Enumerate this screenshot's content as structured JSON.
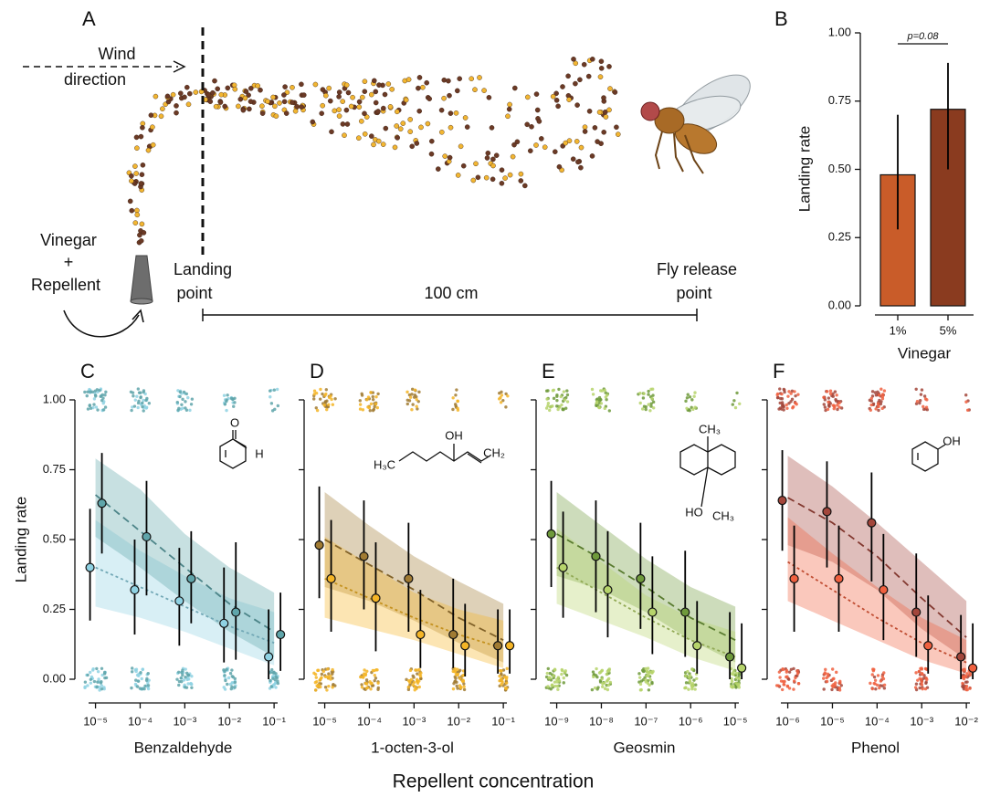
{
  "diagram": {
    "panel_label": "A",
    "wind_label": [
      "Wind",
      "direction"
    ],
    "source_label": [
      "Vinegar",
      "+",
      "Repellent"
    ],
    "landing_label": [
      "Landing",
      "point"
    ],
    "distance_label": "100 cm",
    "release_label": [
      "Fly release",
      "point"
    ]
  },
  "x_label": "Repellent concentration",
  "chart_data": [
    {
      "type": "bar",
      "panel_label": "B",
      "categories": [
        "1%",
        "5%"
      ],
      "values": [
        0.48,
        0.72
      ],
      "ci_low": [
        0.28,
        0.5
      ],
      "ci_high": [
        0.7,
        0.89
      ],
      "colors": [
        "#c95c29",
        "#8a3b1f"
      ],
      "ylim": [
        0,
        1
      ],
      "yticks": [
        {
          "value": 0,
          "label": "0.00"
        },
        {
          "value": 0.25,
          "label": "0.25"
        },
        {
          "value": 0.5,
          "label": "0.50"
        },
        {
          "value": 0.75,
          "label": "0.75"
        },
        {
          "value": 1,
          "label": "1.00"
        }
      ],
      "ylabel": "Landing rate",
      "xlabel": "Vinegar",
      "annotation": "p=0.08"
    },
    {
      "type": "scatter",
      "panel_label": "C",
      "xlabel": "Benzaldehyde",
      "ylabel": "Landing rate",
      "log_x": true,
      "xlim": [
        7e-06,
        0.12
      ],
      "x": [
        1e-05,
        0.0001,
        0.001,
        0.01,
        0.1
      ],
      "xticks": [
        {
          "value": 1e-05,
          "label": "10⁻⁵"
        },
        {
          "value": 0.0001,
          "label": "10⁻⁴"
        },
        {
          "value": 0.001,
          "label": "10⁻³"
        },
        {
          "value": 0.01,
          "label": "10⁻²"
        },
        {
          "value": 0.1,
          "label": "10⁻¹"
        }
      ],
      "ylim": [
        0,
        1
      ],
      "yticks": [
        {
          "value": 0,
          "label": "0.00"
        },
        {
          "value": 0.25,
          "label": "0.25"
        },
        {
          "value": 0.5,
          "label": "0.50"
        },
        {
          "value": 0.75,
          "label": "0.75"
        },
        {
          "value": 1,
          "label": "1.00"
        }
      ],
      "show_ytick_labels": true,
      "structure_labels": [
        "O",
        "H"
      ],
      "series": [
        {
          "color": "#8fd2e3",
          "line_style": "dotted",
          "values": [
            0.4,
            0.32,
            0.28,
            0.2,
            0.08
          ],
          "ci_low": [
            0.21,
            0.16,
            0.12,
            0.06,
            0.0
          ],
          "ci_high": [
            0.61,
            0.5,
            0.47,
            0.4,
            0.25
          ],
          "fit": [
            0.4,
            0.33,
            0.26,
            0.19,
            0.13
          ],
          "fit_low": [
            0.26,
            0.22,
            0.17,
            0.11,
            0.05
          ],
          "fit_high": [
            0.57,
            0.46,
            0.37,
            0.29,
            0.24
          ]
        },
        {
          "color": "#5fa5aa",
          "line_style": "dashed",
          "values": [
            0.63,
            0.51,
            0.36,
            0.24,
            0.16
          ],
          "ci_low": [
            0.45,
            0.3,
            0.2,
            0.07,
            0.03
          ],
          "ci_high": [
            0.81,
            0.71,
            0.53,
            0.49,
            0.31
          ],
          "fit": [
            0.66,
            0.53,
            0.4,
            0.27,
            0.17
          ],
          "fit_low": [
            0.51,
            0.4,
            0.28,
            0.17,
            0.08
          ],
          "fit_high": [
            0.79,
            0.68,
            0.52,
            0.4,
            0.31
          ]
        }
      ]
    },
    {
      "type": "scatter",
      "panel_label": "D",
      "xlabel": "1-octen-3-ol",
      "log_x": true,
      "xlim": [
        7e-06,
        0.12
      ],
      "x": [
        1e-05,
        0.0001,
        0.001,
        0.01,
        0.1
      ],
      "xticks": [
        {
          "value": 1e-05,
          "label": "10⁻⁵"
        },
        {
          "value": 0.0001,
          "label": "10⁻⁴"
        },
        {
          "value": 0.001,
          "label": "10⁻³"
        },
        {
          "value": 0.01,
          "label": "10⁻²"
        },
        {
          "value": 0.1,
          "label": "10⁻¹"
        }
      ],
      "ylim": [
        0,
        1
      ],
      "yticks": [
        0,
        0.25,
        0.5,
        0.75,
        1
      ],
      "show_ytick_labels": false,
      "structure_labels": [
        "H₃C",
        "OH",
        "CH₂"
      ],
      "series": [
        {
          "color": "#a17b33",
          "line_style": "dashed",
          "values": [
            0.48,
            0.44,
            0.36,
            0.16,
            0.12
          ],
          "ci_low": [
            0.29,
            0.25,
            0.17,
            0.04,
            0.02
          ],
          "ci_high": [
            0.69,
            0.64,
            0.56,
            0.36,
            0.25
          ],
          "fit": [
            0.5,
            0.41,
            0.32,
            0.22,
            0.14
          ],
          "fit_low": [
            0.33,
            0.28,
            0.21,
            0.13,
            0.06
          ],
          "fit_high": [
            0.67,
            0.55,
            0.44,
            0.35,
            0.27
          ]
        },
        {
          "color": "#f5b526",
          "line_style": "dotted",
          "values": [
            0.36,
            0.29,
            0.16,
            0.12,
            0.12
          ],
          "ci_low": [
            0.17,
            0.1,
            0.04,
            0.01,
            0.02
          ],
          "ci_high": [
            0.57,
            0.49,
            0.32,
            0.27,
            0.25
          ],
          "fit": [
            0.36,
            0.29,
            0.22,
            0.16,
            0.11
          ],
          "fit_low": [
            0.22,
            0.18,
            0.14,
            0.09,
            0.04
          ],
          "fit_high": [
            0.51,
            0.41,
            0.31,
            0.25,
            0.21
          ]
        }
      ]
    },
    {
      "type": "scatter",
      "panel_label": "E",
      "xlabel": "Geosmin",
      "log_x": true,
      "xlim": [
        7e-10,
        1.2e-05
      ],
      "x": [
        1e-09,
        1e-08,
        1e-07,
        1e-06,
        1e-05
      ],
      "xticks": [
        {
          "value": 1e-09,
          "label": "10⁻⁹"
        },
        {
          "value": 1e-08,
          "label": "10⁻⁸"
        },
        {
          "value": 1e-07,
          "label": "10⁻⁷"
        },
        {
          "value": 1e-06,
          "label": "10⁻⁶"
        },
        {
          "value": 1e-05,
          "label": "10⁻⁵"
        }
      ],
      "ylim": [
        0,
        1
      ],
      "yticks": [
        0,
        0.25,
        0.5,
        0.75,
        1
      ],
      "show_ytick_labels": false,
      "structure_labels": [
        "CH₃",
        "HO",
        "CH₃"
      ],
      "series": [
        {
          "color": "#6f9a3b",
          "line_style": "dashed",
          "values": [
            0.52,
            0.44,
            0.36,
            0.24,
            0.08
          ],
          "ci_low": [
            0.33,
            0.24,
            0.18,
            0.08,
            0.0
          ],
          "ci_high": [
            0.71,
            0.64,
            0.56,
            0.46,
            0.24
          ],
          "fit": [
            0.52,
            0.43,
            0.33,
            0.22,
            0.14
          ],
          "fit_low": [
            0.37,
            0.32,
            0.24,
            0.14,
            0.06
          ],
          "fit_high": [
            0.67,
            0.55,
            0.43,
            0.33,
            0.26
          ]
        },
        {
          "color": "#b6d46b",
          "line_style": "dotted",
          "values": [
            0.4,
            0.32,
            0.24,
            0.12,
            0.04
          ],
          "ci_low": [
            0.22,
            0.15,
            0.09,
            0.02,
            0.0
          ],
          "ci_high": [
            0.6,
            0.53,
            0.44,
            0.28,
            0.2
          ],
          "fit": [
            0.4,
            0.31,
            0.22,
            0.14,
            0.08
          ],
          "fit_low": [
            0.27,
            0.21,
            0.15,
            0.08,
            0.03
          ],
          "fit_high": [
            0.54,
            0.42,
            0.3,
            0.22,
            0.17
          ]
        }
      ]
    },
    {
      "type": "scatter",
      "panel_label": "F",
      "xlabel": "Phenol",
      "log_x": true,
      "xlim": [
        7e-07,
        0.012
      ],
      "x": [
        1e-06,
        1e-05,
        0.0001,
        0.001,
        0.01
      ],
      "xticks": [
        {
          "value": 1e-06,
          "label": "10⁻⁶"
        },
        {
          "value": 1e-05,
          "label": "10⁻⁵"
        },
        {
          "value": 0.0001,
          "label": "10⁻⁴"
        },
        {
          "value": 0.001,
          "label": "10⁻³"
        },
        {
          "value": 0.01,
          "label": "10⁻²"
        }
      ],
      "ylim": [
        0,
        1
      ],
      "yticks": [
        0,
        0.25,
        0.5,
        0.75,
        1
      ],
      "show_ytick_labels": false,
      "structure_labels": [
        "OH"
      ],
      "series": [
        {
          "color": "#a3463b",
          "line_style": "dashed",
          "values": [
            0.64,
            0.6,
            0.56,
            0.24,
            0.08
          ],
          "ci_low": [
            0.46,
            0.4,
            0.35,
            0.08,
            0.0
          ],
          "ci_high": [
            0.82,
            0.78,
            0.74,
            0.45,
            0.23
          ],
          "fit": [
            0.65,
            0.56,
            0.44,
            0.29,
            0.15
          ],
          "fit_low": [
            0.48,
            0.42,
            0.32,
            0.18,
            0.07
          ],
          "fit_high": [
            0.8,
            0.69,
            0.56,
            0.42,
            0.28
          ]
        },
        {
          "color": "#f0603f",
          "line_style": "dotted",
          "values": [
            0.36,
            0.36,
            0.32,
            0.12,
            0.04
          ],
          "ci_low": [
            0.17,
            0.17,
            0.14,
            0.02,
            0.0
          ],
          "ci_high": [
            0.55,
            0.55,
            0.52,
            0.3,
            0.2
          ],
          "fit": [
            0.42,
            0.32,
            0.22,
            0.13,
            0.06
          ],
          "fit_low": [
            0.28,
            0.21,
            0.14,
            0.07,
            0.02
          ],
          "fit_high": [
            0.58,
            0.45,
            0.33,
            0.22,
            0.14
          ]
        }
      ]
    }
  ]
}
